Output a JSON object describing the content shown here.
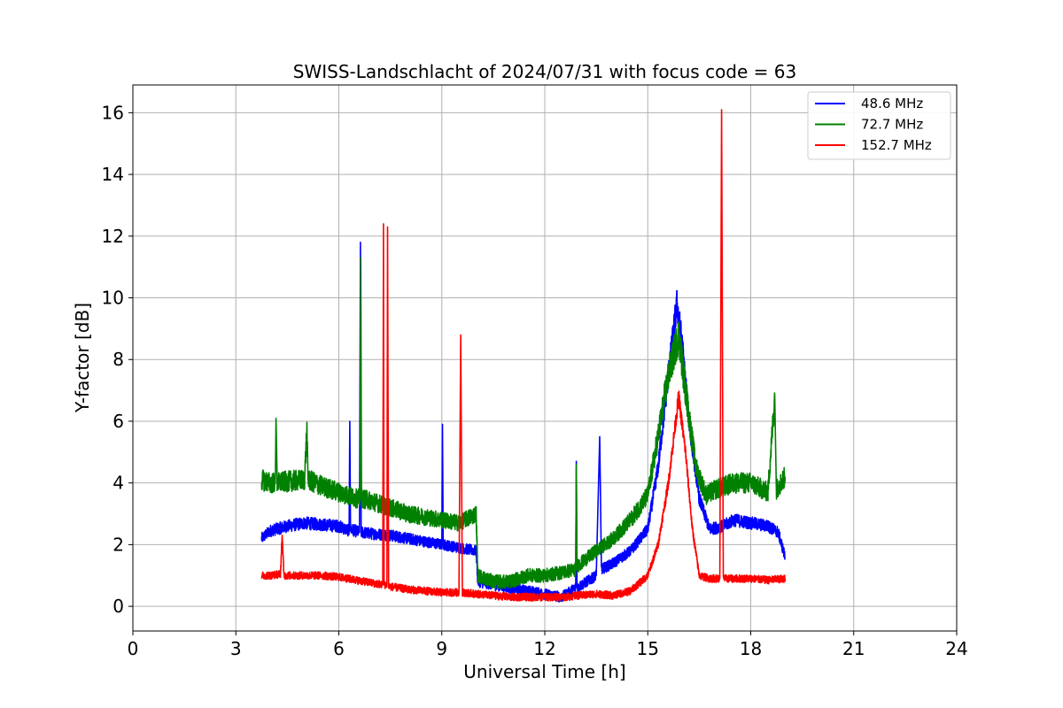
{
  "chart_data": {
    "type": "line",
    "title": "SWISS-Landschlacht of 2024/07/31 with focus code = 63",
    "xlabel": "Universal Time [h]",
    "ylabel": "Y-factor [dB]",
    "xlim": [
      0,
      24
    ],
    "ylim": [
      -0.8,
      16.9
    ],
    "xticks": [
      0,
      3,
      6,
      9,
      12,
      15,
      18,
      21,
      24
    ],
    "yticks": [
      0,
      2,
      4,
      6,
      8,
      10,
      12,
      14,
      16
    ],
    "grid": true,
    "legend_position": "top-right",
    "series": [
      {
        "name": "48.6 MHz",
        "color": "#0000ff",
        "points": [
          [
            3.75,
            2.2
          ],
          [
            4.0,
            2.45
          ],
          [
            4.5,
            2.6
          ],
          [
            5.0,
            2.7
          ],
          [
            5.5,
            2.65
          ],
          [
            6.0,
            2.6
          ],
          [
            6.3,
            2.45
          ],
          [
            6.32,
            6.0
          ],
          [
            6.34,
            2.5
          ],
          [
            6.6,
            2.4
          ],
          [
            6.63,
            11.8
          ],
          [
            6.65,
            2.4
          ],
          [
            7.0,
            2.35
          ],
          [
            7.5,
            2.3
          ],
          [
            8.0,
            2.2
          ],
          [
            8.5,
            2.1
          ],
          [
            9.0,
            2.0
          ],
          [
            9.02,
            5.9
          ],
          [
            9.04,
            2.0
          ],
          [
            9.5,
            1.9
          ],
          [
            10.0,
            1.8
          ],
          [
            10.05,
            0.8
          ],
          [
            10.5,
            0.7
          ],
          [
            11.0,
            0.6
          ],
          [
            11.5,
            0.5
          ],
          [
            12.0,
            0.4
          ],
          [
            12.5,
            0.3
          ],
          [
            12.9,
            0.6
          ],
          [
            12.92,
            4.7
          ],
          [
            12.94,
            0.6
          ],
          [
            13.5,
            1.0
          ],
          [
            13.6,
            5.5
          ],
          [
            13.65,
            1.2
          ],
          [
            14.0,
            1.4
          ],
          [
            14.5,
            1.8
          ],
          [
            15.0,
            2.5
          ],
          [
            15.3,
            4.5
          ],
          [
            15.6,
            7.5
          ],
          [
            15.85,
            9.8
          ],
          [
            16.0,
            8.5
          ],
          [
            16.2,
            6.0
          ],
          [
            16.5,
            3.5
          ],
          [
            16.8,
            2.5
          ],
          [
            17.2,
            2.6
          ],
          [
            17.5,
            2.8
          ],
          [
            18.0,
            2.7
          ],
          [
            18.5,
            2.6
          ],
          [
            18.8,
            2.4
          ],
          [
            19.0,
            1.6
          ]
        ]
      },
      {
        "name": "72.7 MHz",
        "color": "#008000",
        "points": [
          [
            3.75,
            4.1
          ],
          [
            4.0,
            4.0
          ],
          [
            4.15,
            4.0
          ],
          [
            4.17,
            6.1
          ],
          [
            4.2,
            4.0
          ],
          [
            4.5,
            4.05
          ],
          [
            5.0,
            4.1
          ],
          [
            5.07,
            5.7
          ],
          [
            5.1,
            4.1
          ],
          [
            5.5,
            3.9
          ],
          [
            6.0,
            3.7
          ],
          [
            6.5,
            3.5
          ],
          [
            6.62,
            3.5
          ],
          [
            6.64,
            11.3
          ],
          [
            6.66,
            3.5
          ],
          [
            7.0,
            3.4
          ],
          [
            7.5,
            3.2
          ],
          [
            8.0,
            3.0
          ],
          [
            8.5,
            2.9
          ],
          [
            9.0,
            2.8
          ],
          [
            9.5,
            2.7
          ],
          [
            10.0,
            3.0
          ],
          [
            10.05,
            1.0
          ],
          [
            10.5,
            0.8
          ],
          [
            11.0,
            0.8
          ],
          [
            11.5,
            1.0
          ],
          [
            12.0,
            1.0
          ],
          [
            12.5,
            1.1
          ],
          [
            12.9,
            1.2
          ],
          [
            12.92,
            4.6
          ],
          [
            12.94,
            1.3
          ],
          [
            13.5,
            1.8
          ],
          [
            14.0,
            2.2
          ],
          [
            14.5,
            2.8
          ],
          [
            15.0,
            3.6
          ],
          [
            15.3,
            5.5
          ],
          [
            15.6,
            7.5
          ],
          [
            15.9,
            8.8
          ],
          [
            16.1,
            7.0
          ],
          [
            16.4,
            4.5
          ],
          [
            16.7,
            3.6
          ],
          [
            17.0,
            3.8
          ],
          [
            17.5,
            4.0
          ],
          [
            18.0,
            4.0
          ],
          [
            18.5,
            3.7
          ],
          [
            18.7,
            6.8
          ],
          [
            18.75,
            3.8
          ],
          [
            19.0,
            4.2
          ]
        ]
      },
      {
        "name": "152.7 MHz",
        "color": "#ff0000",
        "points": [
          [
            3.75,
            1.0
          ],
          [
            4.0,
            1.0
          ],
          [
            4.3,
            1.05
          ],
          [
            4.35,
            2.3
          ],
          [
            4.4,
            1.0
          ],
          [
            5.0,
            1.0
          ],
          [
            5.5,
            1.0
          ],
          [
            6.0,
            0.95
          ],
          [
            6.5,
            0.85
          ],
          [
            7.0,
            0.75
          ],
          [
            7.28,
            0.7
          ],
          [
            7.3,
            12.4
          ],
          [
            7.32,
            0.7
          ],
          [
            7.4,
            0.7
          ],
          [
            7.42,
            12.3
          ],
          [
            7.45,
            0.65
          ],
          [
            8.0,
            0.55
          ],
          [
            8.5,
            0.5
          ],
          [
            9.0,
            0.45
          ],
          [
            9.5,
            0.45
          ],
          [
            9.55,
            8.8
          ],
          [
            9.6,
            0.45
          ],
          [
            10.0,
            0.4
          ],
          [
            10.5,
            0.35
          ],
          [
            11.0,
            0.3
          ],
          [
            11.5,
            0.3
          ],
          [
            12.0,
            0.3
          ],
          [
            12.5,
            0.3
          ],
          [
            13.0,
            0.35
          ],
          [
            13.5,
            0.4
          ],
          [
            14.0,
            0.35
          ],
          [
            14.5,
            0.5
          ],
          [
            15.0,
            1.0
          ],
          [
            15.3,
            2.0
          ],
          [
            15.6,
            4.0
          ],
          [
            15.9,
            6.8
          ],
          [
            16.1,
            5.0
          ],
          [
            16.3,
            2.5
          ],
          [
            16.5,
            1.0
          ],
          [
            16.8,
            0.9
          ],
          [
            17.1,
            0.9
          ],
          [
            17.15,
            16.1
          ],
          [
            17.2,
            0.9
          ],
          [
            17.5,
            0.9
          ],
          [
            18.0,
            0.9
          ],
          [
            18.5,
            0.85
          ],
          [
            19.0,
            0.9
          ]
        ]
      }
    ]
  }
}
